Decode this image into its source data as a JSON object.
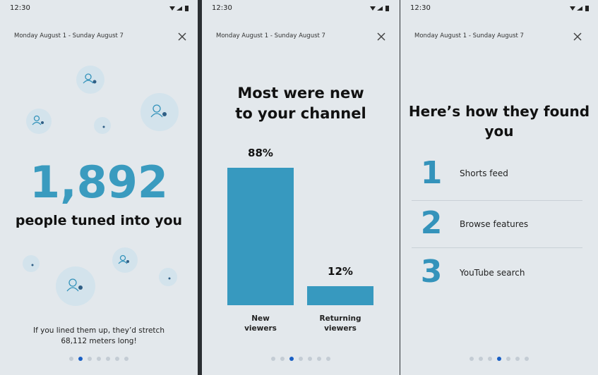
{
  "screens": [
    {
      "status_time": "12:30",
      "date_range": "Monday August 1 - Sunday August 7",
      "stat": "1,892",
      "caption": "people tuned into you",
      "footnote": "If you lined them up, they’d stretch 68,112 meters long!"
    },
    {
      "status_time": "12:30",
      "date_range": "Monday August 1 - Sunday August 7"
    },
    {
      "status_time": "12:30",
      "date_range": "Monday August 1 - Sunday August 7",
      "title": "Here’s how they found you",
      "items": [
        {
          "rank": "1",
          "label": "Shorts feed"
        },
        {
          "rank": "2",
          "label": "Browse features"
        },
        {
          "rank": "3",
          "label": "YouTube search"
        }
      ]
    }
  ],
  "chart_data": {
    "type": "bar",
    "title": "Most were new to your channel",
    "categories": [
      "New viewers",
      "Returning viewers"
    ],
    "values": [
      88,
      12
    ],
    "value_labels": [
      "88%",
      "12%"
    ],
    "color": "#3799bf"
  }
}
